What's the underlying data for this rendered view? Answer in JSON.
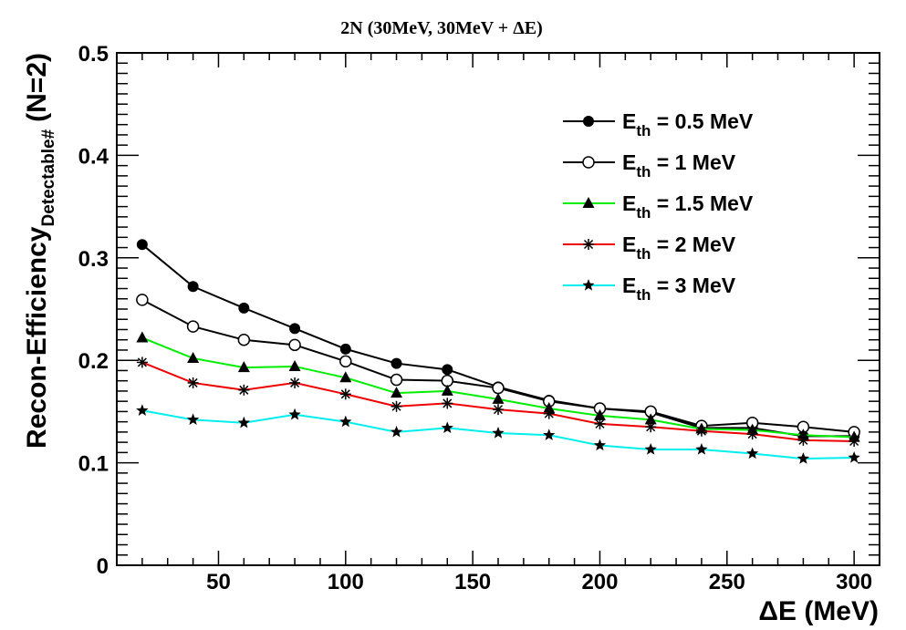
{
  "chart_data": {
    "type": "line",
    "title": "2N (30MeV, 30MeV + ΔE)",
    "xlabel": "ΔE (MeV)",
    "ylabel": {
      "main": "Recon-Efficiency",
      "subscript": "Detectable#",
      "suffix": "(N=2)"
    },
    "xlim": [
      10,
      310
    ],
    "ylim": [
      0,
      0.5
    ],
    "x_ticks": [
      50,
      100,
      150,
      200,
      250,
      300
    ],
    "y_ticks": [
      0,
      0.1,
      0.2,
      0.3,
      0.4,
      0.5
    ],
    "x_tick_labels": [
      "50",
      "100",
      "150",
      "200",
      "250",
      "300"
    ],
    "y_tick_labels": [
      "0",
      "0.1",
      "0.2",
      "0.3",
      "0.4",
      "0.5"
    ],
    "grid": false,
    "legend_position": "top-right",
    "x": [
      20,
      40,
      60,
      80,
      100,
      120,
      140,
      160,
      180,
      200,
      220,
      240,
      260,
      280,
      300
    ],
    "series": [
      {
        "legend_main": "E",
        "legend_sub": "th",
        "legend_rest": " = 0.5 MeV",
        "color": "#000000",
        "marker": "filled-circle",
        "values": [
          0.313,
          0.272,
          0.251,
          0.231,
          0.211,
          0.197,
          0.191,
          0.174,
          0.161,
          0.153,
          0.149,
          0.134,
          0.134,
          0.126,
          0.126
        ]
      },
      {
        "legend_main": "E",
        "legend_sub": "th",
        "legend_rest": " = 1 MeV",
        "color": "#000000",
        "marker": "open-circle",
        "values": [
          0.259,
          0.233,
          0.22,
          0.215,
          0.199,
          0.181,
          0.18,
          0.173,
          0.16,
          0.153,
          0.15,
          0.136,
          0.139,
          0.135,
          0.13
        ]
      },
      {
        "legend_main": "E",
        "legend_sub": "th",
        "legend_rest": " = 1.5 MeV",
        "color": "#00ee00",
        "marker": "filled-triangle",
        "values": [
          0.222,
          0.202,
          0.193,
          0.194,
          0.183,
          0.168,
          0.17,
          0.162,
          0.153,
          0.146,
          0.142,
          0.133,
          0.132,
          0.127,
          0.125
        ]
      },
      {
        "legend_main": "E",
        "legend_sub": "th",
        "legend_rest": " = 2 MeV",
        "color": "#ee0000",
        "marker": "asterisk",
        "values": [
          0.198,
          0.178,
          0.171,
          0.178,
          0.167,
          0.155,
          0.158,
          0.152,
          0.148,
          0.138,
          0.135,
          0.131,
          0.128,
          0.122,
          0.121
        ]
      },
      {
        "legend_main": "E",
        "legend_sub": "th",
        "legend_rest": " = 3 MeV",
        "color": "#00eeee",
        "marker": "filled-star",
        "values": [
          0.151,
          0.142,
          0.139,
          0.147,
          0.14,
          0.13,
          0.134,
          0.129,
          0.127,
          0.117,
          0.113,
          0.113,
          0.109,
          0.104,
          0.105
        ]
      }
    ]
  }
}
